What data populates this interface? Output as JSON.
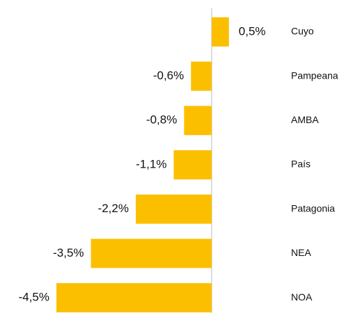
{
  "chart_data": {
    "type": "bar",
    "orientation": "horizontal",
    "categories": [
      "Cuyo",
      "Pampeana",
      "AMBA",
      "País",
      "Patagonia",
      "NEA",
      "NOA"
    ],
    "values": [
      0.5,
      -0.6,
      -0.8,
      -1.1,
      -2.2,
      -3.5,
      -4.5
    ],
    "value_labels": [
      "0,5%",
      "-0,6%",
      "-0,8%",
      "-1,1%",
      "-2,2%",
      "-3,5%",
      "-4,5%"
    ],
    "color": "#fcbf00"
  }
}
